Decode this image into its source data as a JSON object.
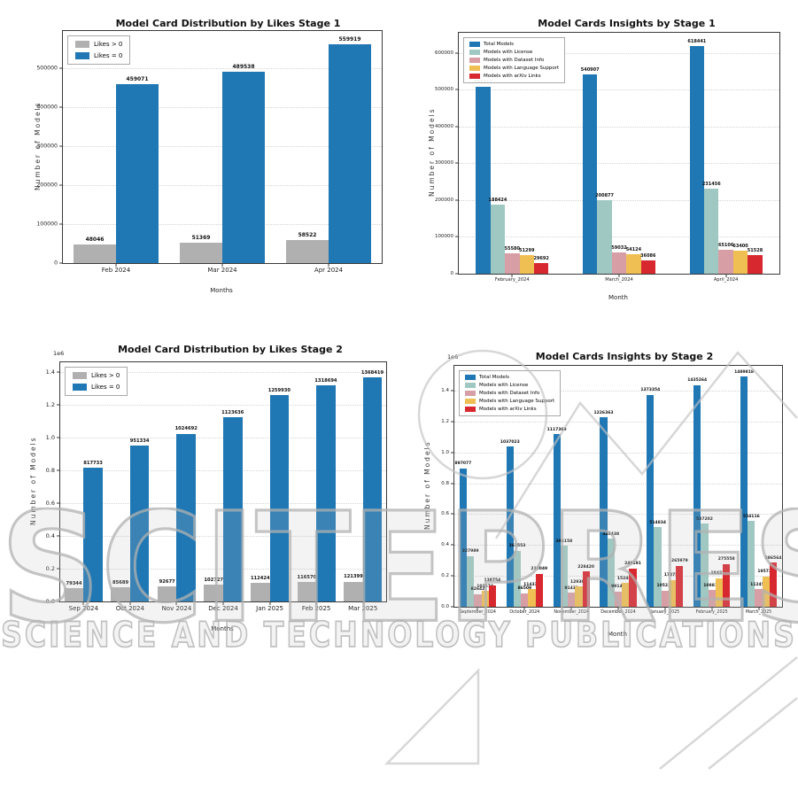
{
  "watermark": {
    "line1": "SCITEPRESS",
    "line2": "SCIENCE AND TECHNOLOGY PUBLICATIONS"
  },
  "chart_data": [
    {
      "type": "bar",
      "title": "Model Card Distribution by Likes Stage 1",
      "xlabel": "Months",
      "ylabel": "Number of Models",
      "categories": [
        "Feb 2024",
        "Mar 2024",
        "Apr 2024"
      ],
      "series": [
        {
          "name": "Likes > 0",
          "color": "#b0b0b0",
          "values": [
            48046,
            51369,
            58522
          ]
        },
        {
          "name": "Likes = 0",
          "color": "#1f77b4",
          "values": [
            459071,
            489538,
            559919
          ]
        }
      ],
      "yticks": [
        {
          "value": 0,
          "label": "0"
        },
        {
          "value": 100000,
          "label": "100000"
        },
        {
          "value": 200000,
          "label": "200000"
        },
        {
          "value": 300000,
          "label": "300000"
        },
        {
          "value": 400000,
          "label": "400000"
        },
        {
          "value": 500000,
          "label": "500000"
        }
      ],
      "ylim": [
        0,
        595000
      ],
      "grid": true,
      "legend_loc": "upper left",
      "offset_label": null,
      "bar_group_fraction": 0.8
    },
    {
      "type": "bar",
      "title": "Model Cards Insights by Stage 1",
      "xlabel": "Month",
      "ylabel": "Number of Models",
      "categories": [
        "February_2024",
        "March_2024",
        "April_2024"
      ],
      "series": [
        {
          "name": "Total Models",
          "color": "#1f77b4",
          "values": [
            507117,
            540907,
            618441
          ]
        },
        {
          "name": "Models with License",
          "color": "#9fc8c2",
          "values": [
            188424,
            200877,
            231456
          ]
        },
        {
          "name": "Models with Dataset Info",
          "color": "#d79fa5",
          "values": [
            55580,
            59032,
            65106
          ]
        },
        {
          "name": "Models with Language Support",
          "color": "#f0bf54",
          "values": [
            51299,
            54124,
            63400
          ]
        },
        {
          "name": "Models with arXiv Links",
          "color": "#d7282f",
          "values": [
            29692,
            36086,
            51528
          ]
        }
      ],
      "yticks": [
        {
          "value": 0,
          "label": "0"
        },
        {
          "value": 100000,
          "label": "100000"
        },
        {
          "value": 200000,
          "label": "200000"
        },
        {
          "value": 300000,
          "label": "300000"
        },
        {
          "value": 400000,
          "label": "400000"
        },
        {
          "value": 500000,
          "label": "500000"
        },
        {
          "value": 600000,
          "label": "600000"
        }
      ],
      "ylim": [
        0,
        655000
      ],
      "grid": true,
      "legend_loc": "upper left",
      "offset_label": null,
      "bar_group_fraction": 0.68
    },
    {
      "type": "bar",
      "title": "Model Card Distribution by Likes Stage 2",
      "xlabel": "Months",
      "ylabel": "Number of Models",
      "categories": [
        "Sep 2024",
        "Oct 2024",
        "Nov 2024",
        "Dec 2024",
        "Jan 2025",
        "Feb 2025",
        "Mar 2025"
      ],
      "series": [
        {
          "name": "Likes > 0",
          "color": "#b0b0b0",
          "values": [
            79344,
            85689,
            92677,
            102727,
            112424,
            116570,
            121399
          ]
        },
        {
          "name": "Likes = 0",
          "color": "#1f77b4",
          "values": [
            817733,
            951334,
            1024692,
            1123636,
            1259930,
            1318694,
            1368419
          ]
        }
      ],
      "yticks": [
        {
          "value": 0,
          "label": "0.0"
        },
        {
          "value": 200000,
          "label": "0.2"
        },
        {
          "value": 400000,
          "label": "0.4"
        },
        {
          "value": 600000,
          "label": "0.6"
        },
        {
          "value": 800000,
          "label": "0.8"
        },
        {
          "value": 1000000,
          "label": "1.0"
        },
        {
          "value": 1200000,
          "label": "1.2"
        },
        {
          "value": 1400000,
          "label": "1.4"
        }
      ],
      "ylim": [
        0,
        1460000
      ],
      "grid": true,
      "legend_loc": "upper left",
      "offset_label": "1e6",
      "bar_group_fraction": 0.82
    },
    {
      "type": "bar",
      "title": "Model Cards Insights by Stage 2",
      "xlabel": "Month",
      "ylabel": "Number of Models",
      "categories": [
        "September_2024",
        "October_2024",
        "November_2024",
        "December_2024",
        "January_2025",
        "February_2025",
        "March_2025"
      ],
      "series": [
        {
          "name": "Total Models",
          "color": "#1f77b4",
          "values": [
            897077,
            1037023,
            1117369,
            1226363,
            1373354,
            1435264,
            1489818
          ]
        },
        {
          "name": "Models with License",
          "color": "#9fc8c2",
          "values": [
            327989,
            361553,
            394158,
            440438,
            514834,
            537202,
            554116
          ]
        },
        {
          "name": "Models with Dataset Info",
          "color": "#d79fa5",
          "values": [
            82642,
            86509,
            91431,
            99142,
            105236,
            108819,
            112451
          ]
        },
        {
          "name": "Models with Language Support",
          "color": "#f0bf54",
          "values": [
            101574,
            114338,
            129305,
            152465,
            173758,
            184233,
            195721
          ]
        },
        {
          "name": "Models with arXiv Links",
          "color": "#d7282f",
          "values": [
            138754,
            215049,
            228420,
            249191,
            265979,
            275558,
            286564
          ]
        }
      ],
      "yticks": [
        {
          "value": 0,
          "label": "0.0"
        },
        {
          "value": 200000,
          "label": "0.2"
        },
        {
          "value": 400000,
          "label": "0.4"
        },
        {
          "value": 600000,
          "label": "0.6"
        },
        {
          "value": 800000,
          "label": "0.8"
        },
        {
          "value": 1000000,
          "label": "1.0"
        },
        {
          "value": 1200000,
          "label": "1.2"
        },
        {
          "value": 1400000,
          "label": "1.4"
        }
      ],
      "ylim": [
        0,
        1560000
      ],
      "grid": true,
      "legend_loc": "upper left",
      "offset_label": "1e6",
      "bar_group_fraction": 0.78
    }
  ]
}
